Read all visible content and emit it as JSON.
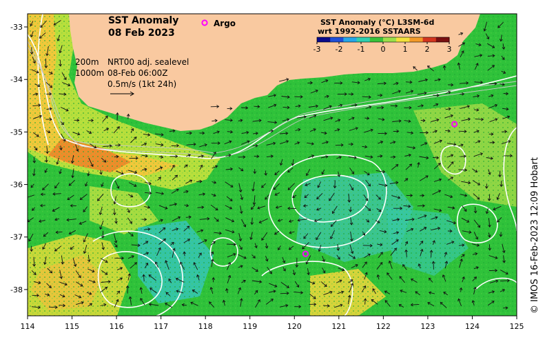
{
  "map": {
    "title_line1": "SST Anomaly",
    "title_line2": "08 Feb 2023",
    "argo_label": "Argo",
    "legend_title_line1": "SST Anomaly (°C) L3SM-6d",
    "legend_title_line2": "wrt 1992-2016 SSTAARS",
    "legend_ticks": [
      "-3",
      "-2",
      "-1",
      "0",
      "1",
      "2",
      "3"
    ],
    "info": {
      "depth1": "200m",
      "depth2": "1000m",
      "model": "NRT00 adj. sealevel",
      "time": "08-Feb 06:00Z",
      "scale": "0.5m/s (1kt 24h)"
    },
    "credit": "© IMOS 16-Feb-2023 12:09 Hobart",
    "x_ticks": [
      "114",
      "115",
      "116",
      "117",
      "118",
      "119",
      "120",
      "121",
      "122",
      "123",
      "124",
      "125"
    ],
    "y_ticks": [
      "-33",
      "-34",
      "-35",
      "-36",
      "-37",
      "-38"
    ],
    "argo_floats": [
      {
        "lon": 123.6,
        "lat": -34.85
      },
      {
        "lon": 120.25,
        "lat": -37.32
      }
    ],
    "colors": {
      "land": "#f9c9a0",
      "ocean_base": "#2fc23a",
      "cool": "#2bd6a8",
      "warm": "#f0d23a",
      "hot": "#ef8a26",
      "argo": "#ff00ff",
      "contour": "#ffffff"
    },
    "colormap": [
      "#0a0a8a",
      "#1f4fd8",
      "#27a7e8",
      "#2fd0b0",
      "#39c23a",
      "#9be04a",
      "#f3e23a",
      "#f39a28",
      "#d4361e",
      "#7a1010"
    ]
  }
}
